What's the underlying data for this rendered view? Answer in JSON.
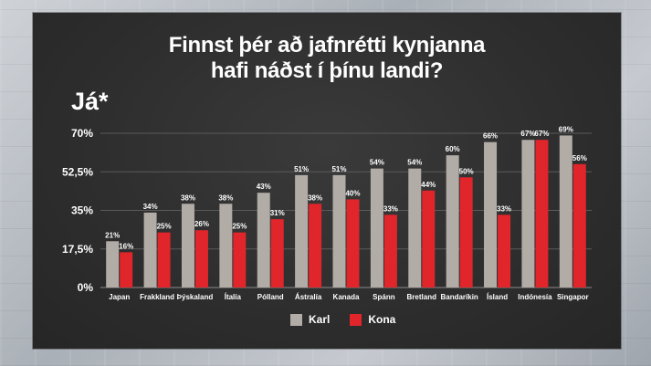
{
  "chart_data": {
    "type": "bar",
    "title": "Finnst þér að jafnrétti kynjanna",
    "subtitle": "hafi náðst í þínu landi?",
    "ylabel": "Já*",
    "ylim": [
      0,
      70
    ],
    "yticks": [
      0,
      17.5,
      35,
      52.5,
      70
    ],
    "ytick_labels": [
      "0%",
      "17,5%",
      "35%",
      "52,5%",
      "70%"
    ],
    "grid": true,
    "legend_position": "bottom-center",
    "categories": [
      "Japan",
      "Frakkland",
      "Þýskaland",
      "Ítalía",
      "Pólland",
      "Ástralía",
      "Kanada",
      "Spánn",
      "Bretland",
      "Bandaríkin",
      "Ísland",
      "Indónesía",
      "Singapor"
    ],
    "series": [
      {
        "name": "Karl",
        "color": "#b2aca6",
        "values": [
          21,
          34,
          38,
          38,
          43,
          51,
          51,
          54,
          54,
          60,
          66,
          67,
          69
        ],
        "labels": [
          "21%",
          "34%",
          "38%",
          "38%",
          "43%",
          "51%",
          "51%",
          "54%",
          "54%",
          "60%",
          "66%",
          "67%",
          "69%"
        ]
      },
      {
        "name": "Kona",
        "color": "#e0252b",
        "values": [
          16,
          25,
          26,
          25,
          31,
          38,
          40,
          33,
          44,
          50,
          33,
          67,
          56
        ],
        "labels": [
          "16%",
          "25%",
          "26%",
          "25%",
          "31%",
          "38%",
          "40%",
          "33%",
          "44%",
          "50%",
          "33%",
          "67%",
          "56%"
        ]
      }
    ]
  }
}
